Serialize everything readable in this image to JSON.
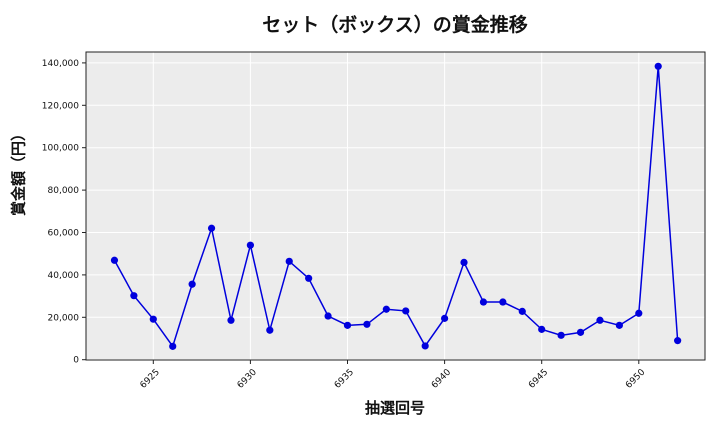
{
  "chart_data": {
    "type": "line",
    "title": "セット（ボックス）の賞金推移",
    "xlabel": "抽選回号",
    "ylabel": "賞金額（円）",
    "x": [
      6923,
      6924,
      6925,
      6926,
      6927,
      6928,
      6929,
      6930,
      6931,
      6932,
      6933,
      6934,
      6935,
      6936,
      6937,
      6938,
      6939,
      6940,
      6941,
      6942,
      6943,
      6944,
      6945,
      6946,
      6947,
      6948,
      6949,
      6950,
      6951,
      6952
    ],
    "series": [
      {
        "name": "賞金額",
        "color": "#0000dd",
        "values": [
          46900,
          30200,
          19100,
          6300,
          35600,
          62000,
          18600,
          54000,
          13900,
          46400,
          38400,
          20600,
          16200,
          16700,
          23800,
          23000,
          6500,
          19500,
          45900,
          27200,
          27200,
          22800,
          14300,
          11500,
          12900,
          18600,
          16200,
          21900,
          138400,
          9000
        ]
      }
    ],
    "xticks": [
      6925,
      6930,
      6935,
      6940,
      6945,
      6950
    ],
    "xtick_labels": [
      "6925",
      "6930",
      "6935",
      "6940",
      "6945",
      "6950"
    ],
    "yticks": [
      0,
      20000,
      40000,
      60000,
      80000,
      100000,
      120000,
      140000
    ],
    "ytick_labels": [
      "0",
      "20,000",
      "40,000",
      "60,000",
      "80,000",
      "100,000",
      "120,000",
      "140,000"
    ],
    "xlim": [
      6921.8,
      6953.0
    ],
    "ylim": [
      -650,
      145000
    ],
    "grid": true,
    "legend": "none",
    "background": "#ececec",
    "grid_color": "#ffffff"
  }
}
